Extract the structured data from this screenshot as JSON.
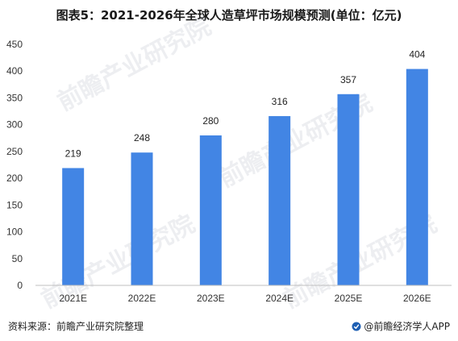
{
  "title": "图表5：2021-2026年全球人造草坪市场规模预测(单位：亿元)",
  "footer": {
    "source": "资料来源：前瞻产业研究院整理",
    "app": "@前瞻经济学人APP",
    "app_icon": "qianzhan-logo-icon"
  },
  "watermark": "前瞻产业研究院",
  "colors": {
    "bar": "#4285e4",
    "axis": "#bfbfbf",
    "watermark": "#bfc6cf"
  },
  "chart_data": {
    "type": "bar",
    "categories": [
      "2021E",
      "2022E",
      "2023E",
      "2024E",
      "2025E",
      "2026E"
    ],
    "values": [
      219,
      248,
      280,
      316,
      357,
      404
    ],
    "title": "图表5：2021-2026年全球人造草坪市场规模预测(单位：亿元)",
    "xlabel": "",
    "ylabel": "",
    "ylim": [
      0,
      450
    ],
    "yticks": [
      "0",
      "50",
      "100",
      "150",
      "200",
      "250",
      "300",
      "350",
      "400",
      "450"
    ],
    "grid": false,
    "legend": "none"
  }
}
